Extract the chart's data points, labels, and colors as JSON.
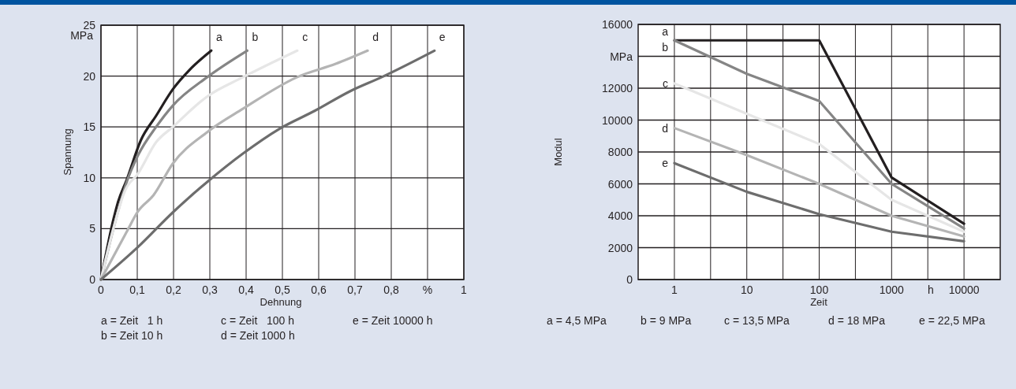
{
  "chart_data": [
    {
      "type": "line",
      "xlabel": "Dehnung",
      "ylabel": "Spannung",
      "grid": true,
      "xlim": [
        0,
        1
      ],
      "ylim": [
        0,
        25
      ],
      "xticks": [
        0,
        {
          "value": 0.1,
          "label": "0,1"
        },
        {
          "value": 0.2,
          "label": "0,2"
        },
        {
          "value": 0.3,
          "label": "0,3"
        },
        {
          "value": 0.4,
          "label": "0,4"
        },
        {
          "value": 0.5,
          "label": "0,5"
        },
        {
          "value": 0.6,
          "label": "0,6"
        },
        {
          "value": 0.7,
          "label": "0,7"
        },
        {
          "value": 0.8,
          "label": "0,8"
        },
        {
          "value": 0.9,
          "label": "%"
        },
        1
      ],
      "yticks": [
        0,
        5,
        10,
        15,
        20,
        25
      ],
      "annotations": [
        "MPa",
        "a = Zeit   1 h",
        "c = Zeit   100 h",
        "e = Zeit 10000 h",
        "b = Zeit 10 h",
        "d = Zeit 1000 h"
      ],
      "series": [
        {
          "name": "a",
          "color": "#231f20",
          "x": [
            0,
            0.035,
            0.046,
            0.071,
            0.11,
            0.152,
            0.198,
            0.244,
            0.304
          ],
          "values": [
            0,
            6.0,
            7.5,
            9.8,
            13.7,
            16.1,
            18.7,
            20.6,
            22.5
          ]
        },
        {
          "name": "b",
          "color": "#858585",
          "x": [
            0,
            0.032,
            0.071,
            0.102,
            0.152,
            0.198,
            0.293,
            0.403
          ],
          "values": [
            0,
            4.7,
            9.6,
            12.2,
            15.0,
            17.1,
            19.9,
            22.5
          ]
        },
        {
          "name": "c",
          "color": "#e6e6e6",
          "x": [
            0,
            0.032,
            0.067,
            0.102,
            0.152,
            0.198,
            0.293,
            0.392,
            0.541
          ],
          "values": [
            0,
            4.7,
            8.8,
            10.4,
            13.5,
            15.0,
            18.0,
            19.9,
            22.5
          ]
        },
        {
          "name": "d",
          "color": "#b4b4b4",
          "x": [
            0,
            0.071,
            0.102,
            0.145,
            0.198,
            0.293,
            0.392,
            0.541,
            0.647,
            0.735
          ],
          "values": [
            0,
            4.7,
            6.7,
            8.3,
            11.4,
            14.5,
            16.8,
            19.9,
            21.2,
            22.5
          ]
        },
        {
          "name": "e",
          "color": "#6d6d6d",
          "x": [
            0,
            0.102,
            0.198,
            0.293,
            0.392,
            0.491,
            0.59,
            0.686,
            0.774,
            0.919
          ],
          "values": [
            0,
            3.2,
            6.6,
            9.6,
            12.4,
            14.8,
            16.6,
            18.5,
            19.9,
            22.5
          ]
        }
      ]
    },
    {
      "type": "line",
      "xlabel": "Zeit",
      "ylabel": "Modul",
      "grid": true,
      "log": "x",
      "xlim": [
        0.316,
        31623
      ],
      "ylim": [
        0,
        16000
      ],
      "xticks": [
        1,
        {
          "value": 3.162,
          "label": null
        },
        10,
        {
          "value": 31.62,
          "label": null
        },
        100,
        {
          "value": 316.2,
          "label": null
        },
        1000,
        {
          "value": 3162,
          "label": null
        },
        10000
      ],
      "yticks": [
        0,
        2000,
        4000,
        6000,
        8000,
        10000,
        12000,
        {
          "value": 14000,
          "label": "MPa"
        },
        16000
      ],
      "annotations": [
        "h",
        "a = 4,5 MPa",
        "b = 9 MPa",
        "c = 13,5 MPa",
        "d = 18 MPa",
        "e = 22,5 MPa"
      ],
      "x": [
        1,
        10,
        100,
        1000,
        10000
      ],
      "series": [
        {
          "name": "a",
          "color": "#231f20",
          "values": [
            15000,
            15000,
            15000,
            6400,
            3500
          ]
        },
        {
          "name": "b",
          "color": "#858585",
          "values": [
            15000,
            12900,
            11200,
            6000,
            3200
          ]
        },
        {
          "name": "c",
          "color": "#e6e6e6",
          "values": [
            12300,
            10400,
            8500,
            5000,
            3000
          ]
        },
        {
          "name": "d",
          "color": "#b4b4b4",
          "values": [
            9500,
            7800,
            6000,
            4000,
            2700
          ]
        },
        {
          "name": "e",
          "color": "#6d6d6d",
          "values": [
            7300,
            5500,
            4100,
            3000,
            2400
          ]
        }
      ]
    }
  ]
}
